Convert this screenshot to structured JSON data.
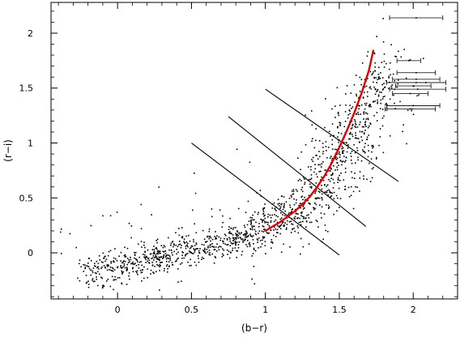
{
  "chart_data": {
    "type": "scatter",
    "title": "",
    "xlabel": "(b−r)",
    "ylabel": "(r−i)",
    "xlim": [
      -0.45,
      2.3
    ],
    "ylim": [
      -0.42,
      2.28
    ],
    "grid": false,
    "x_ticks": [
      0,
      0.5,
      1,
      1.5,
      2
    ],
    "y_ticks": [
      0,
      0.5,
      1,
      1.5,
      2
    ],
    "x_tick_labels": [
      "0",
      "0.5",
      "1",
      "1.5",
      "2"
    ],
    "y_tick_labels": [
      "0",
      "0.5",
      "1",
      "1.5",
      "2"
    ],
    "point_cloud": {
      "approx_count": 1500,
      "seed": 7,
      "segments": [
        {
          "x_range": [
            -0.2,
            0.9
          ],
          "y_start": -0.18,
          "y_slope": 0.3,
          "scatter": 0.07,
          "weight": 0.38
        },
        {
          "x_range": [
            0.9,
            1.3
          ],
          "y_start": 0.16,
          "y_slope": 0.75,
          "scatter": 0.1,
          "weight": 0.18
        },
        {
          "x_range": [
            1.3,
            1.85
          ],
          "y_start": 0.46,
          "y_slope": 2.1,
          "scatter": 0.22,
          "weight": 0.34
        }
      ],
      "outlier_region": {
        "x_range": [
          -0.4,
          2.1
        ],
        "y_range": [
          -0.35,
          2.05
        ],
        "weight": 0.1
      }
    },
    "reference_lines": [
      {
        "x": [
          0.5,
          1.5
        ],
        "y": [
          1.0,
          -0.02
        ]
      },
      {
        "x": [
          0.75,
          1.68
        ],
        "y": [
          1.24,
          0.24
        ]
      },
      {
        "x": [
          1.0,
          1.9
        ],
        "y": [
          1.49,
          0.65
        ]
      }
    ],
    "model_curve": {
      "color": "#e00000",
      "x": [
        1.0,
        1.05,
        1.1,
        1.15,
        1.2,
        1.25,
        1.3,
        1.35,
        1.4,
        1.45,
        1.5,
        1.55,
        1.6,
        1.65,
        1.7,
        1.73
      ],
      "y": [
        0.2,
        0.24,
        0.28,
        0.33,
        0.38,
        0.44,
        0.51,
        0.6,
        0.7,
        0.82,
        0.96,
        1.11,
        1.27,
        1.45,
        1.66,
        1.84
      ]
    },
    "error_bars": [
      {
        "x": 2.02,
        "y": 2.14,
        "xerr": 0.18
      },
      {
        "x": 1.97,
        "y": 1.75,
        "xerr": 0.08
      },
      {
        "x": 2.02,
        "y": 1.64,
        "xerr": 0.13
      },
      {
        "x": 2.02,
        "y": 1.58,
        "xerr": 0.16
      },
      {
        "x": 2.02,
        "y": 1.55,
        "xerr": 0.2
      },
      {
        "x": 2.0,
        "y": 1.52,
        "xerr": 0.12
      },
      {
        "x": 2.03,
        "y": 1.49,
        "xerr": 0.19
      },
      {
        "x": 1.98,
        "y": 1.45,
        "xerr": 0.12
      },
      {
        "x": 2.0,
        "y": 1.34,
        "xerr": 0.18
      },
      {
        "x": 1.98,
        "y": 1.31,
        "xerr": 0.17
      }
    ]
  }
}
